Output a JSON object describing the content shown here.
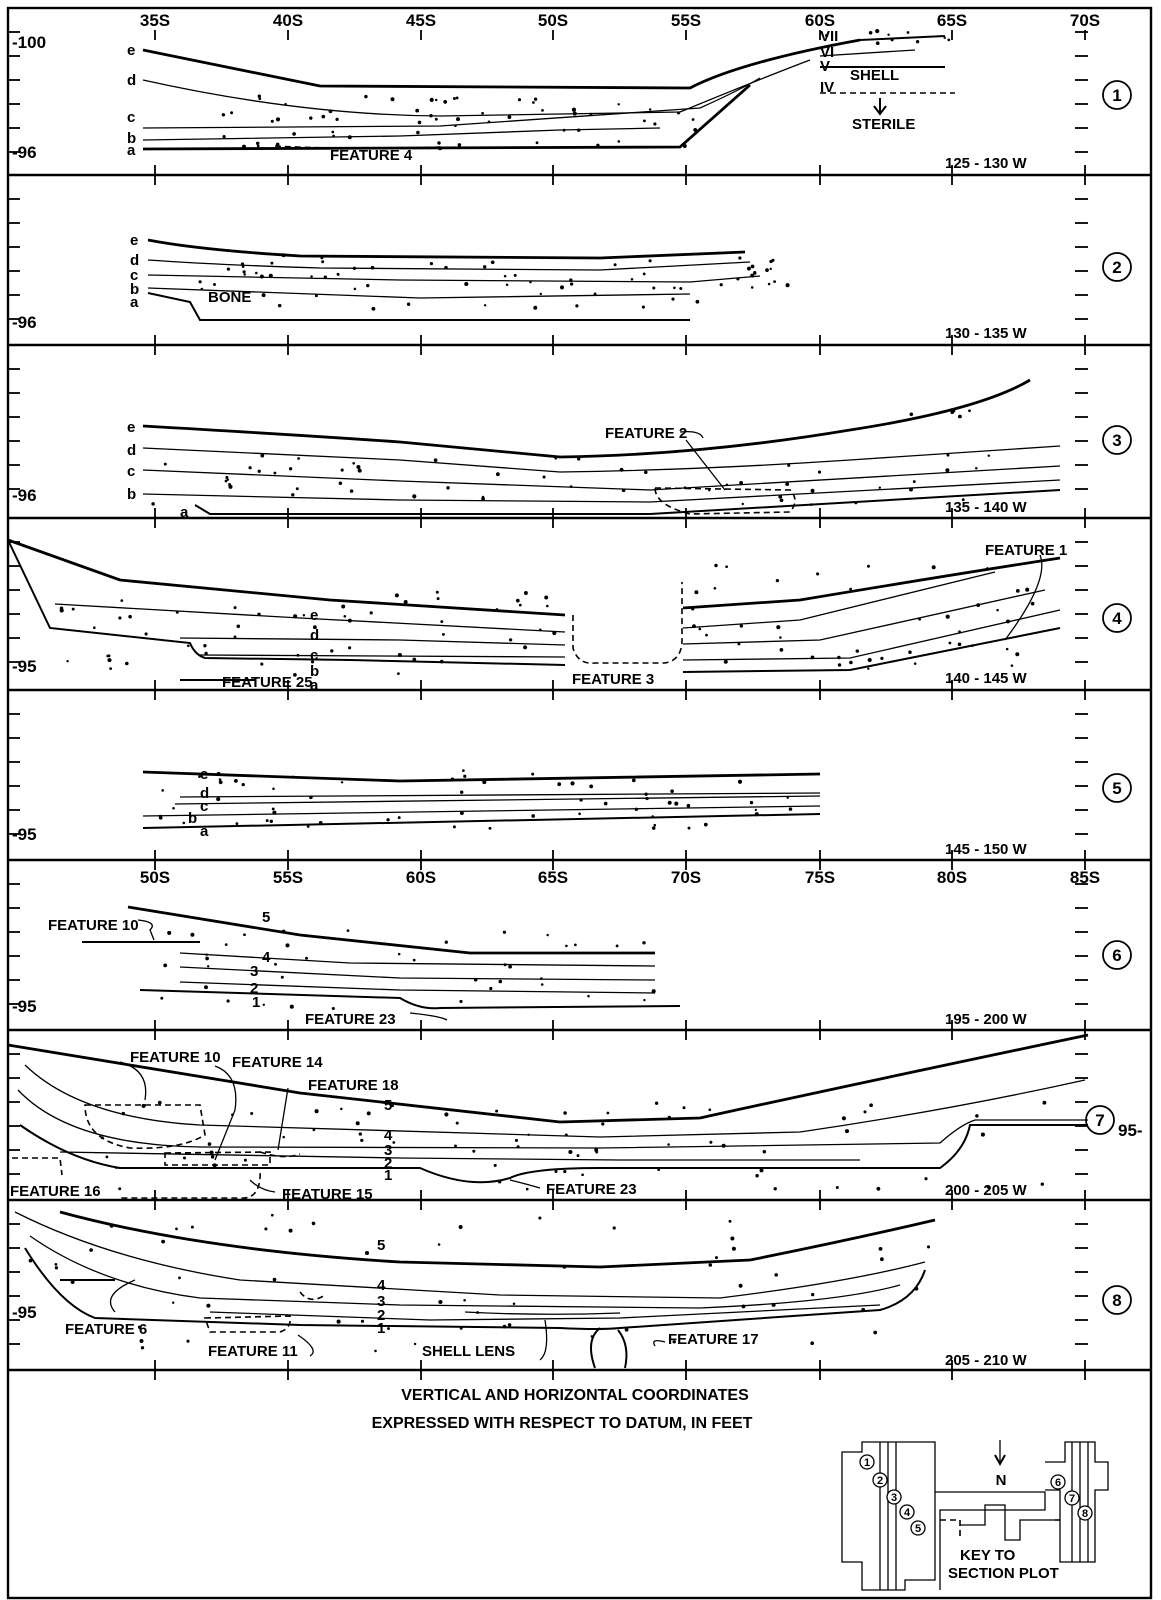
{
  "axes": {
    "top_ticks": [
      "35S",
      "40S",
      "45S",
      "50S",
      "55S",
      "60S",
      "65S",
      "70S"
    ],
    "mid_ticks": [
      "50S",
      "55S",
      "60S",
      "65S",
      "70S",
      "75S",
      "80S",
      "85S"
    ]
  },
  "sections": [
    {
      "number": "1",
      "range": "125 - 130 W",
      "elev_top": "-100",
      "elev_bottom": "-96",
      "layers": [
        "e",
        "d",
        "c",
        "b",
        "a"
      ],
      "strata": [
        "VII",
        "VI",
        "V",
        "IV"
      ],
      "notes": [
        "SHELL",
        "STERILE"
      ],
      "features": [
        "FEATURE 4"
      ]
    },
    {
      "number": "2",
      "range": "130 - 135 W",
      "elev_bottom": "-96",
      "layers": [
        "e",
        "d",
        "c",
        "b",
        "a"
      ],
      "notes": [
        "BONE"
      ],
      "features": []
    },
    {
      "number": "3",
      "range": "135 - 140 W",
      "elev_bottom": "-96",
      "layers": [
        "e",
        "d",
        "c",
        "b",
        "a"
      ],
      "features": [
        "FEATURE 2"
      ]
    },
    {
      "number": "4",
      "range": "140 - 145 W",
      "elev_bottom": "-95",
      "layers": [
        "e",
        "d",
        "c",
        "b",
        "a"
      ],
      "features": [
        "FEATURE 1",
        "FEATURE 25",
        "FEATURE 3"
      ]
    },
    {
      "number": "5",
      "range": "145 - 150 W",
      "elev_bottom": "-95",
      "layers": [
        "e",
        "d",
        "c",
        "b",
        "a"
      ],
      "features": []
    },
    {
      "number": "6",
      "range": "195 - 200 W",
      "elev_bottom": "-95",
      "layers": [
        "5",
        "4",
        "3",
        "2",
        "1"
      ],
      "features": [
        "FEATURE 10",
        "FEATURE 23"
      ]
    },
    {
      "number": "7",
      "range": "200 - 205 W",
      "elev_right": "95-",
      "layers": [
        "5",
        "4",
        "3",
        "2",
        "1"
      ],
      "features": [
        "FEATURE 10",
        "FEATURE 14",
        "FEATURE 18",
        "FEATURE 16",
        "FEATURE 15",
        "FEATURE 23"
      ]
    },
    {
      "number": "8",
      "range": "205 - 210 W",
      "elev_bottom": "-95",
      "layers": [
        "5",
        "4",
        "3",
        "2",
        "1"
      ],
      "features": [
        "FEATURE 6",
        "FEATURE 11",
        "SHELL LENS",
        "FEATURE 17"
      ]
    }
  ],
  "caption": {
    "line1": "VERTICAL AND HORIZONTAL COORDINATES",
    "line2": "EXPRESSED WITH RESPECT TO DATUM, IN FEET"
  },
  "key": {
    "north": "N",
    "label1": "KEY TO",
    "label2": "SECTION PLOT",
    "markers": [
      "1",
      "2",
      "3",
      "4",
      "5",
      "6",
      "7",
      "8"
    ]
  }
}
